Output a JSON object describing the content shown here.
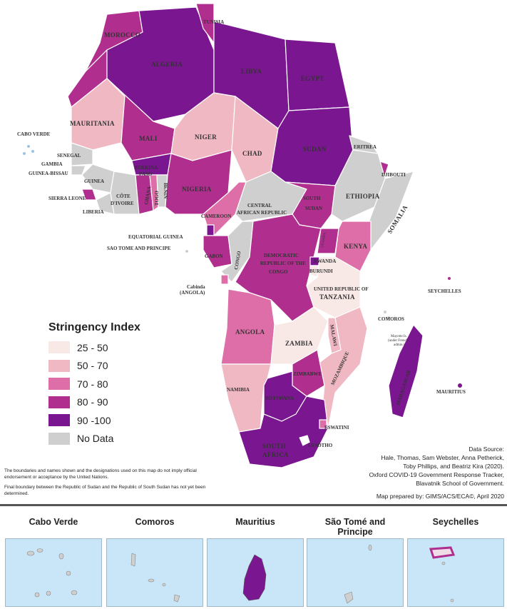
{
  "legend": {
    "title": "Stringency Index",
    "items": [
      {
        "label": "25 - 50",
        "color": "#f8e9e6"
      },
      {
        "label": "50 - 70",
        "color": "#f0b8c3"
      },
      {
        "label": "70 - 80",
        "color": "#dd6ea7"
      },
      {
        "label": "80 - 90",
        "color": "#b02e8e"
      },
      {
        "label": "90 -100",
        "color": "#7a168f"
      },
      {
        "label": "No Data",
        "color": "#cfcfcf"
      }
    ]
  },
  "colors": {
    "water": "#c9e6f8",
    "border": "#ffffff"
  },
  "countries": {
    "morocco": "MOROCCO",
    "algeria": "ALGERIA",
    "tunisia": "TUNISIA",
    "libya": "LIBYA",
    "egypt": "EGYPT",
    "mauritania": "MAURITANIA",
    "mali": "MALI",
    "niger": "NIGER",
    "chad": "CHAD",
    "sudan": "SUDAN",
    "eritrea": "ERITREA",
    "djibouti": "DJIBOUTI",
    "ethiopia": "ETHIOPIA",
    "somalia": "SOMALIA",
    "senegal": "SENEGAL",
    "gambia": "GAMBIA",
    "guinea_bissau": "GUINEA-BISSAU",
    "guinea": "GUINEA",
    "sierra_leone": "SIERRA LEONE",
    "liberia": "LIBERIA",
    "cote_line1": "CÔTE",
    "cote_line2": "D'IVOIRE",
    "burkina_line1": "BURKINA",
    "burkina_line2": "FASO",
    "ghana": "GHANA",
    "togo": "TOGO",
    "benin": "BENIN",
    "nigeria": "NIGERIA",
    "cameroon": "CAMEROON",
    "car_line1": "CENTRAL",
    "car_line2": "AFRICAN REPUBLIC",
    "south_sudan_line1": "SOUTH",
    "south_sudan_line2": "SUDAN",
    "equatorial_guinea": "EQUATORIAL GUINEA",
    "sao_tome": "SAO TOME AND PRINCIPE",
    "gabon": "GABON",
    "congo": "CONGO",
    "drc_line1": "DEMOCRATIC",
    "drc_line2": "REPUBLIC OF THE",
    "drc_line3": "CONGO",
    "uganda": "UGANDA",
    "kenya": "KENYA",
    "rwanda": "RWANDA",
    "burundi": "BURUNDI",
    "tanzania_line1": "UNITED REPUBLIC OF",
    "tanzania_line2": "TANZANIA",
    "cabinda_line1": "Cabinda",
    "cabinda_line2": "(ANGOLA)",
    "angola": "ANGOLA",
    "zambia": "ZAMBIA",
    "malawi": "MALAWI",
    "mozambique": "MOZAMBIQUE",
    "zimbabwe": "ZIMBABWE",
    "namibia": "NAMIBIA",
    "botswana": "BOTSWANA",
    "south_africa_line1": "SOUTH",
    "south_africa_line2": "AFRICA",
    "eswatini": "ESWATINI",
    "lesotho": "LESOTHO",
    "madagascar": "MADAGASCAR",
    "comoros": "COMOROS",
    "seychelles": "SEYCHELLES",
    "mauritius": "MAURITIUS",
    "cabo_verde": "CABO VERDE",
    "mayotte_line1": "Mayotte Is.",
    "mayotte_line2": "(under French",
    "mayotte_line3": "admin.)"
  },
  "disclaimer": {
    "line1": "The boundaries and names shown and the designations used on this map do not imply official endorsement or acceptance by the United Nations.",
    "line2": "Final boundary between the Republic of Sudan and the Republic of South Sudan has not yet been determined."
  },
  "source": {
    "heading": "Data Source:",
    "line1": "Hale, Thomas, Sam Webster, Anna Petherick,",
    "line2": "Toby Phillips, and Beatriz Kira (2020).",
    "line3": "Oxford COVID-19 Government Response Tracker,",
    "line4": "Blavatnik School of Government.",
    "prepared": "Map prepared by: GIMS/ACS/ECA©,  April 2020"
  },
  "insets": [
    {
      "title": "Cabo Verde",
      "fill": "#cfcfcf"
    },
    {
      "title": "Comoros",
      "fill": "#cfcfcf"
    },
    {
      "title": "Mauritius",
      "fill": "#7a168f"
    },
    {
      "title": "São Tomé and Principe",
      "fill": "#cfcfcf"
    },
    {
      "title": "Seychelles",
      "fill": "#b02e8e"
    }
  ]
}
